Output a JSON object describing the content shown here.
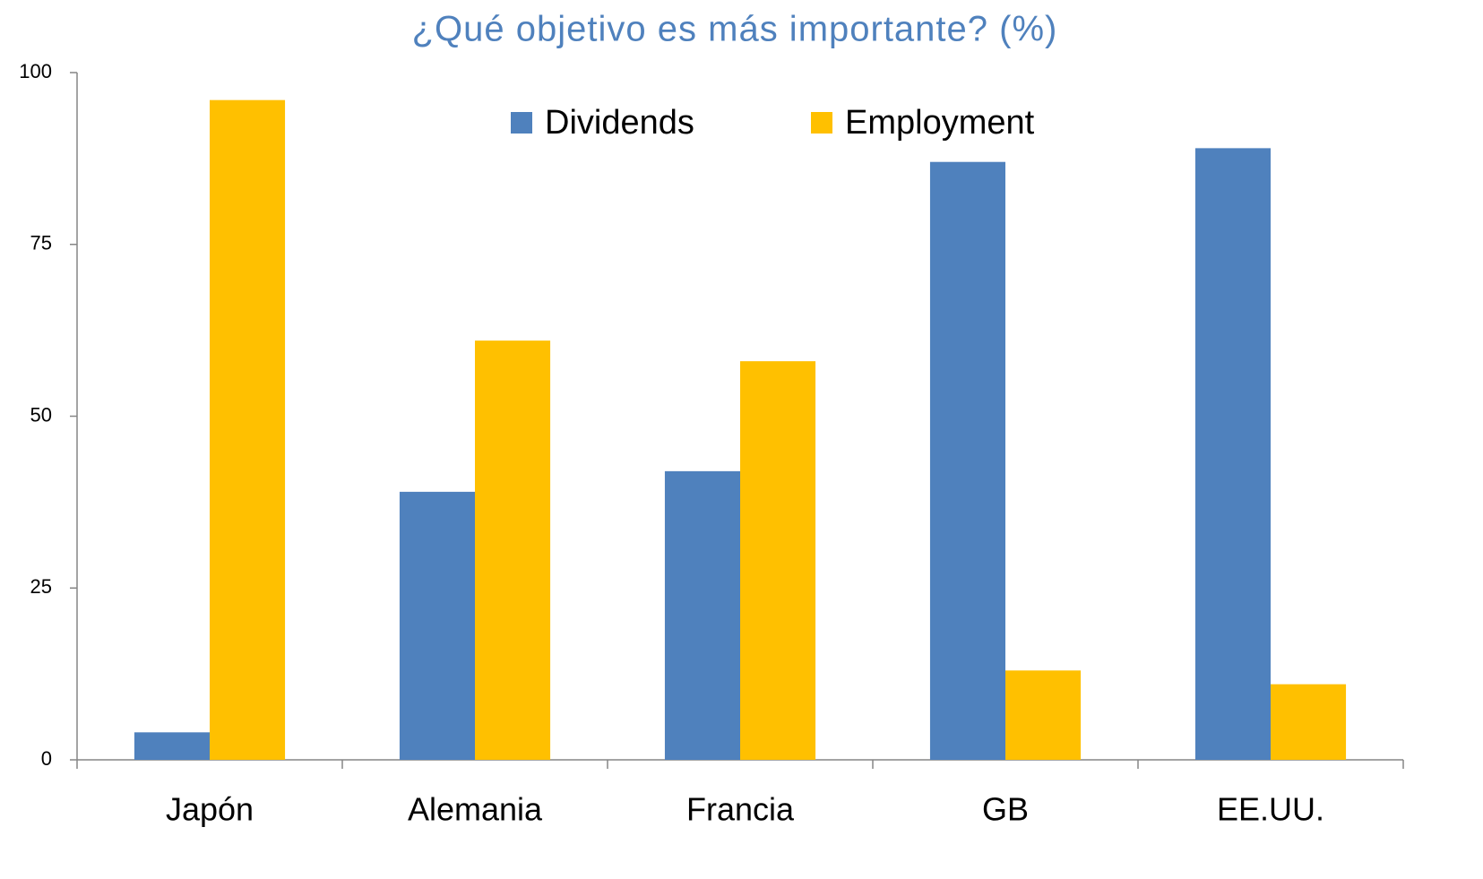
{
  "chart_data": {
    "type": "bar",
    "title": "¿Qué objetivo es más importante? (%)",
    "categories": [
      "Japón",
      "Alemania",
      "Francia",
      "GB",
      "EE.UU."
    ],
    "series": [
      {
        "name": "Dividends",
        "color": "#4f81bd",
        "values": [
          4,
          39,
          42,
          87,
          89
        ]
      },
      {
        "name": "Employment",
        "color": "#ffc000",
        "values": [
          96,
          61,
          58,
          13,
          11
        ]
      }
    ],
    "ylim": [
      0,
      100
    ],
    "yticks": [
      0,
      25,
      50,
      75,
      100
    ],
    "grid": false,
    "legend": "top"
  }
}
